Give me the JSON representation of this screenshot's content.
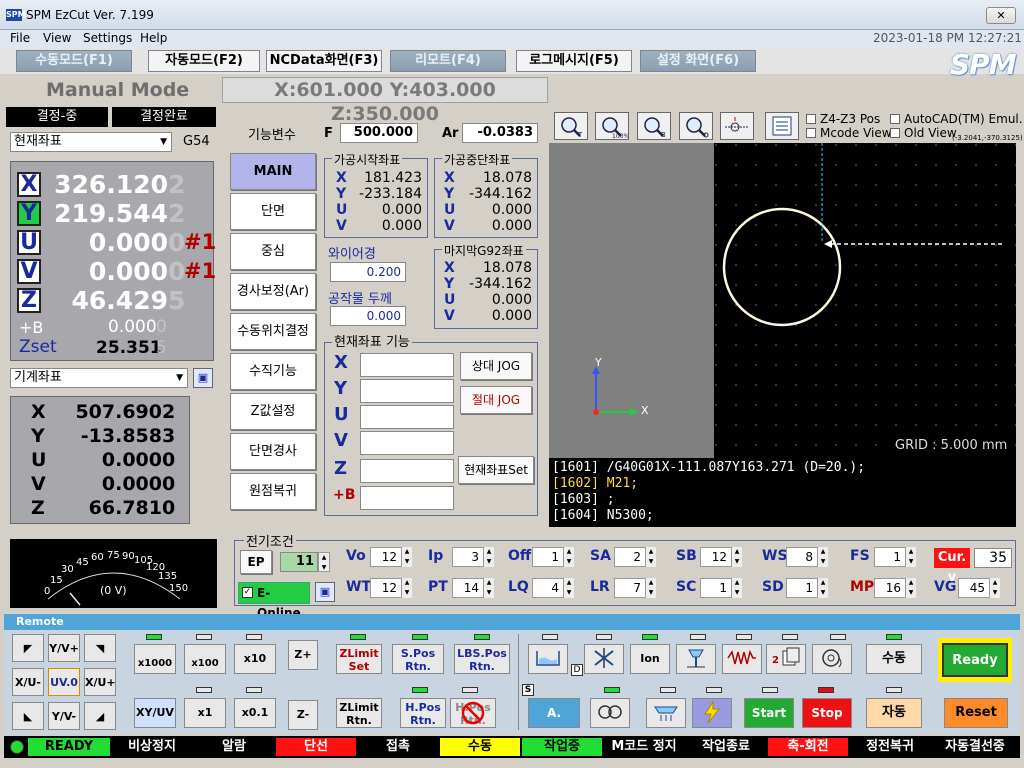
{
  "app": {
    "logo": "SPM",
    "title": "SPM EzCut Ver. 7.199",
    "close": "✕",
    "datetime": "2023-01-18 PM 12:27:21",
    "brand": "SPM"
  },
  "menu": [
    "File",
    "View",
    "Settings",
    "Help"
  ],
  "tabs": [
    "수동모드(F1)",
    "자동모드(F2)",
    "NCData화면(F3)",
    "리모트(F4)",
    "로그메시지(F5)",
    "설정 화면(F6)"
  ],
  "mode": "Manual Mode",
  "coords_header": "X:601.000 Y:403.000 Z:350.000",
  "search_status": [
    "결정-중",
    "결정완료"
  ],
  "coord_select": "현재좌표",
  "work_offset": "G54",
  "current": [
    {
      "axis": "X",
      "value": "326.120",
      "ghost": "2",
      "flag": ""
    },
    {
      "axis": "Y",
      "value": "219.544",
      "ghost": "2",
      "flag": ""
    },
    {
      "axis": "U",
      "value": "0.000",
      "ghost": "0",
      "flag": "#1"
    },
    {
      "axis": "V",
      "value": "0.000",
      "ghost": "0",
      "flag": "#1"
    },
    {
      "axis": "Z",
      "value": "46.429",
      "ghost": "5",
      "flag": ""
    }
  ],
  "plusb": {
    "label": "+B",
    "value": "0.000",
    "ghost": "0"
  },
  "zset": {
    "label": "Zset",
    "value": "25.351",
    "ghost": "5"
  },
  "machine_select": "기계좌표",
  "machine": [
    {
      "axis": "X",
      "value": "507.690",
      "ghost": "2"
    },
    {
      "axis": "Y",
      "value": "-13.858",
      "ghost": "3"
    },
    {
      "axis": "U",
      "value": "0.000",
      "ghost": "0"
    },
    {
      "axis": "V",
      "value": "0.000",
      "ghost": "0"
    },
    {
      "axis": "Z",
      "value": "66.781",
      "ghost": "0"
    }
  ],
  "func_label": "기능변수",
  "side_buttons": [
    "MAIN",
    "단면",
    "중심",
    "경사보정(Ar)",
    "수동위치결정",
    "수직기능",
    "Z값설정",
    "단면경사",
    "원점복귀"
  ],
  "f": {
    "label": "F",
    "value": "500.000"
  },
  "ar": {
    "label": "Ar",
    "value": "-0.0383"
  },
  "start_coord": {
    "title": "가공시작좌표",
    "rows": [
      [
        "X",
        "181.423"
      ],
      [
        "Y",
        "-233.184"
      ],
      [
        "U",
        "0.000"
      ],
      [
        "V",
        "0.000"
      ]
    ]
  },
  "stop_coord": {
    "title": "가공중단좌표",
    "rows": [
      [
        "X",
        "18.078"
      ],
      [
        "Y",
        "-344.162"
      ],
      [
        "U",
        "0.000"
      ],
      [
        "V",
        "0.000"
      ]
    ]
  },
  "wire": {
    "label": "와이어경",
    "value": "0.200"
  },
  "thick": {
    "label": "공작물 두께",
    "value": "0.000"
  },
  "g92": {
    "title": "마지막G92좌표",
    "rows": [
      [
        "X",
        "18.078"
      ],
      [
        "Y",
        "-344.162"
      ],
      [
        "U",
        "0.000"
      ],
      [
        "V",
        "0.000"
      ]
    ]
  },
  "cur_func": {
    "title": "현재좌표 기능",
    "axes": [
      "X",
      "Y",
      "U",
      "V",
      "Z",
      "+B"
    ],
    "rel_jog": "상대 JOG",
    "abs_jog": "절대 JOG",
    "set": "현재좌표Set"
  },
  "view_opts": {
    "z4z3": "Z4-Z3 Pos",
    "mcode": "Mcode View",
    "autocad": "AutoCAD(TM) Emul.",
    "oldview": "Old View",
    "coords": "(-3.2041,-370.3125)"
  },
  "viewer": {
    "grid": "GRID : 5.000 mm",
    "axis_x": "X",
    "axis_y": "Y",
    "lines": [
      {
        "text": "[1601] /G40G01X-111.087Y163.271 (D=20.);",
        "color": "#ffffff"
      },
      {
        "text": "[1602] M21;",
        "color": "#ffdd33"
      },
      {
        "text": "[1603] ;",
        "color": "#ffffff"
      },
      {
        "text": "[1604] N5300;",
        "color": "#ffffff"
      }
    ]
  },
  "gauge": {
    "ticks": [
      "0",
      "15",
      "30",
      "45",
      "60",
      "75",
      "90",
      "105",
      "120",
      "135",
      "150"
    ],
    "readout": "(0 V)"
  },
  "cond": {
    "title": "전기조건",
    "ep": "EP",
    "ep_value": "11",
    "eonline": "E-Online",
    "row1": [
      [
        "Vo",
        "12"
      ],
      [
        "Ip",
        "3"
      ],
      [
        "Off",
        "1"
      ],
      [
        "SA",
        "2"
      ],
      [
        "SB",
        "12"
      ],
      [
        "WS",
        "8"
      ],
      [
        "FS",
        "1"
      ]
    ],
    "curv": {
      "label": "Cur. v",
      "value": "35"
    },
    "row2": [
      [
        "WT",
        "12"
      ],
      [
        "PT",
        "14"
      ],
      [
        "LQ",
        "4"
      ],
      [
        "LR",
        "7"
      ],
      [
        "SC",
        "1"
      ],
      [
        "SD",
        "1"
      ],
      [
        "MP",
        "16"
      ],
      [
        "VG",
        "45"
      ]
    ]
  },
  "remote": {
    "title": "Remote",
    "jog": [
      "◤",
      "Y/V+",
      "◥",
      "X/U-",
      "UV.0",
      "X/U+",
      "◣",
      "Y/V-",
      "◢"
    ],
    "steps": [
      "x1000",
      "x100",
      "x10",
      "Z+",
      "XY/UV",
      "x1",
      "x0.1",
      "Z-"
    ],
    "fn": [
      "ZLimit Set",
      "S.Pos Rtn.",
      "LBS.Pos Rtn.",
      "ZLimit Rtn.",
      "H.Pos Rtn.",
      "H.Pos Rtn."
    ],
    "ion": "Ion",
    "astart": "A. Start",
    "start": "Start",
    "stop": "Stop",
    "manual": "수동",
    "auto": "자동",
    "ready": "Ready",
    "reset": "Reset",
    "d": "D",
    "s": "S"
  },
  "status": [
    "READY",
    "비상정지",
    "알람",
    "단선",
    "접촉",
    "수동",
    "작업중",
    "M코드 정지",
    "작업종료",
    "축-회전",
    "정전복귀",
    "자동결선중"
  ],
  "colors": {
    "accent": "#4fa5d8",
    "ready": "#22cc44",
    "alarm": "#ff1111",
    "manual": "#ffff00"
  }
}
